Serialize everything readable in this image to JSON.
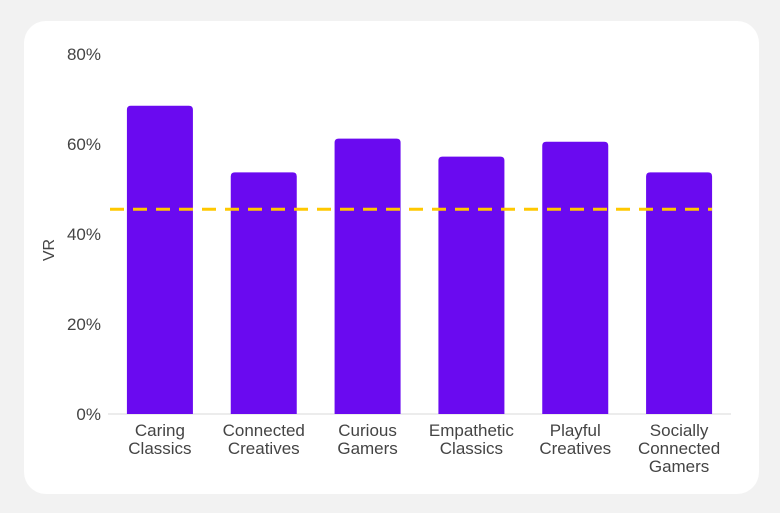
{
  "chart_data": {
    "type": "bar",
    "categories": [
      [
        "Caring",
        "Classics"
      ],
      [
        "Connected",
        "Creatives"
      ],
      [
        "Curious",
        "Gamers"
      ],
      [
        "Empathetic",
        "Classics"
      ],
      [
        "Playful",
        "Creatives"
      ],
      [
        "Socially",
        "Connected",
        "Gamers"
      ]
    ],
    "values": [
      68.5,
      53.7,
      61.2,
      57.2,
      60.5,
      53.7
    ],
    "ylabel": "VR",
    "ylim": [
      0,
      80
    ],
    "yticks": [
      {
        "value": 0,
        "label": "0%"
      },
      {
        "value": 20,
        "label": "20%"
      },
      {
        "value": 40,
        "label": "40%"
      },
      {
        "value": 60,
        "label": "60%"
      },
      {
        "value": 80,
        "label": "80%"
      }
    ],
    "reference_line": {
      "value": 45.5,
      "style": "dashed"
    },
    "grid": false,
    "colors": {
      "bar": "#6a0af0",
      "reference_line": "#ffc800",
      "baseline": "#e6e6e6"
    }
  }
}
